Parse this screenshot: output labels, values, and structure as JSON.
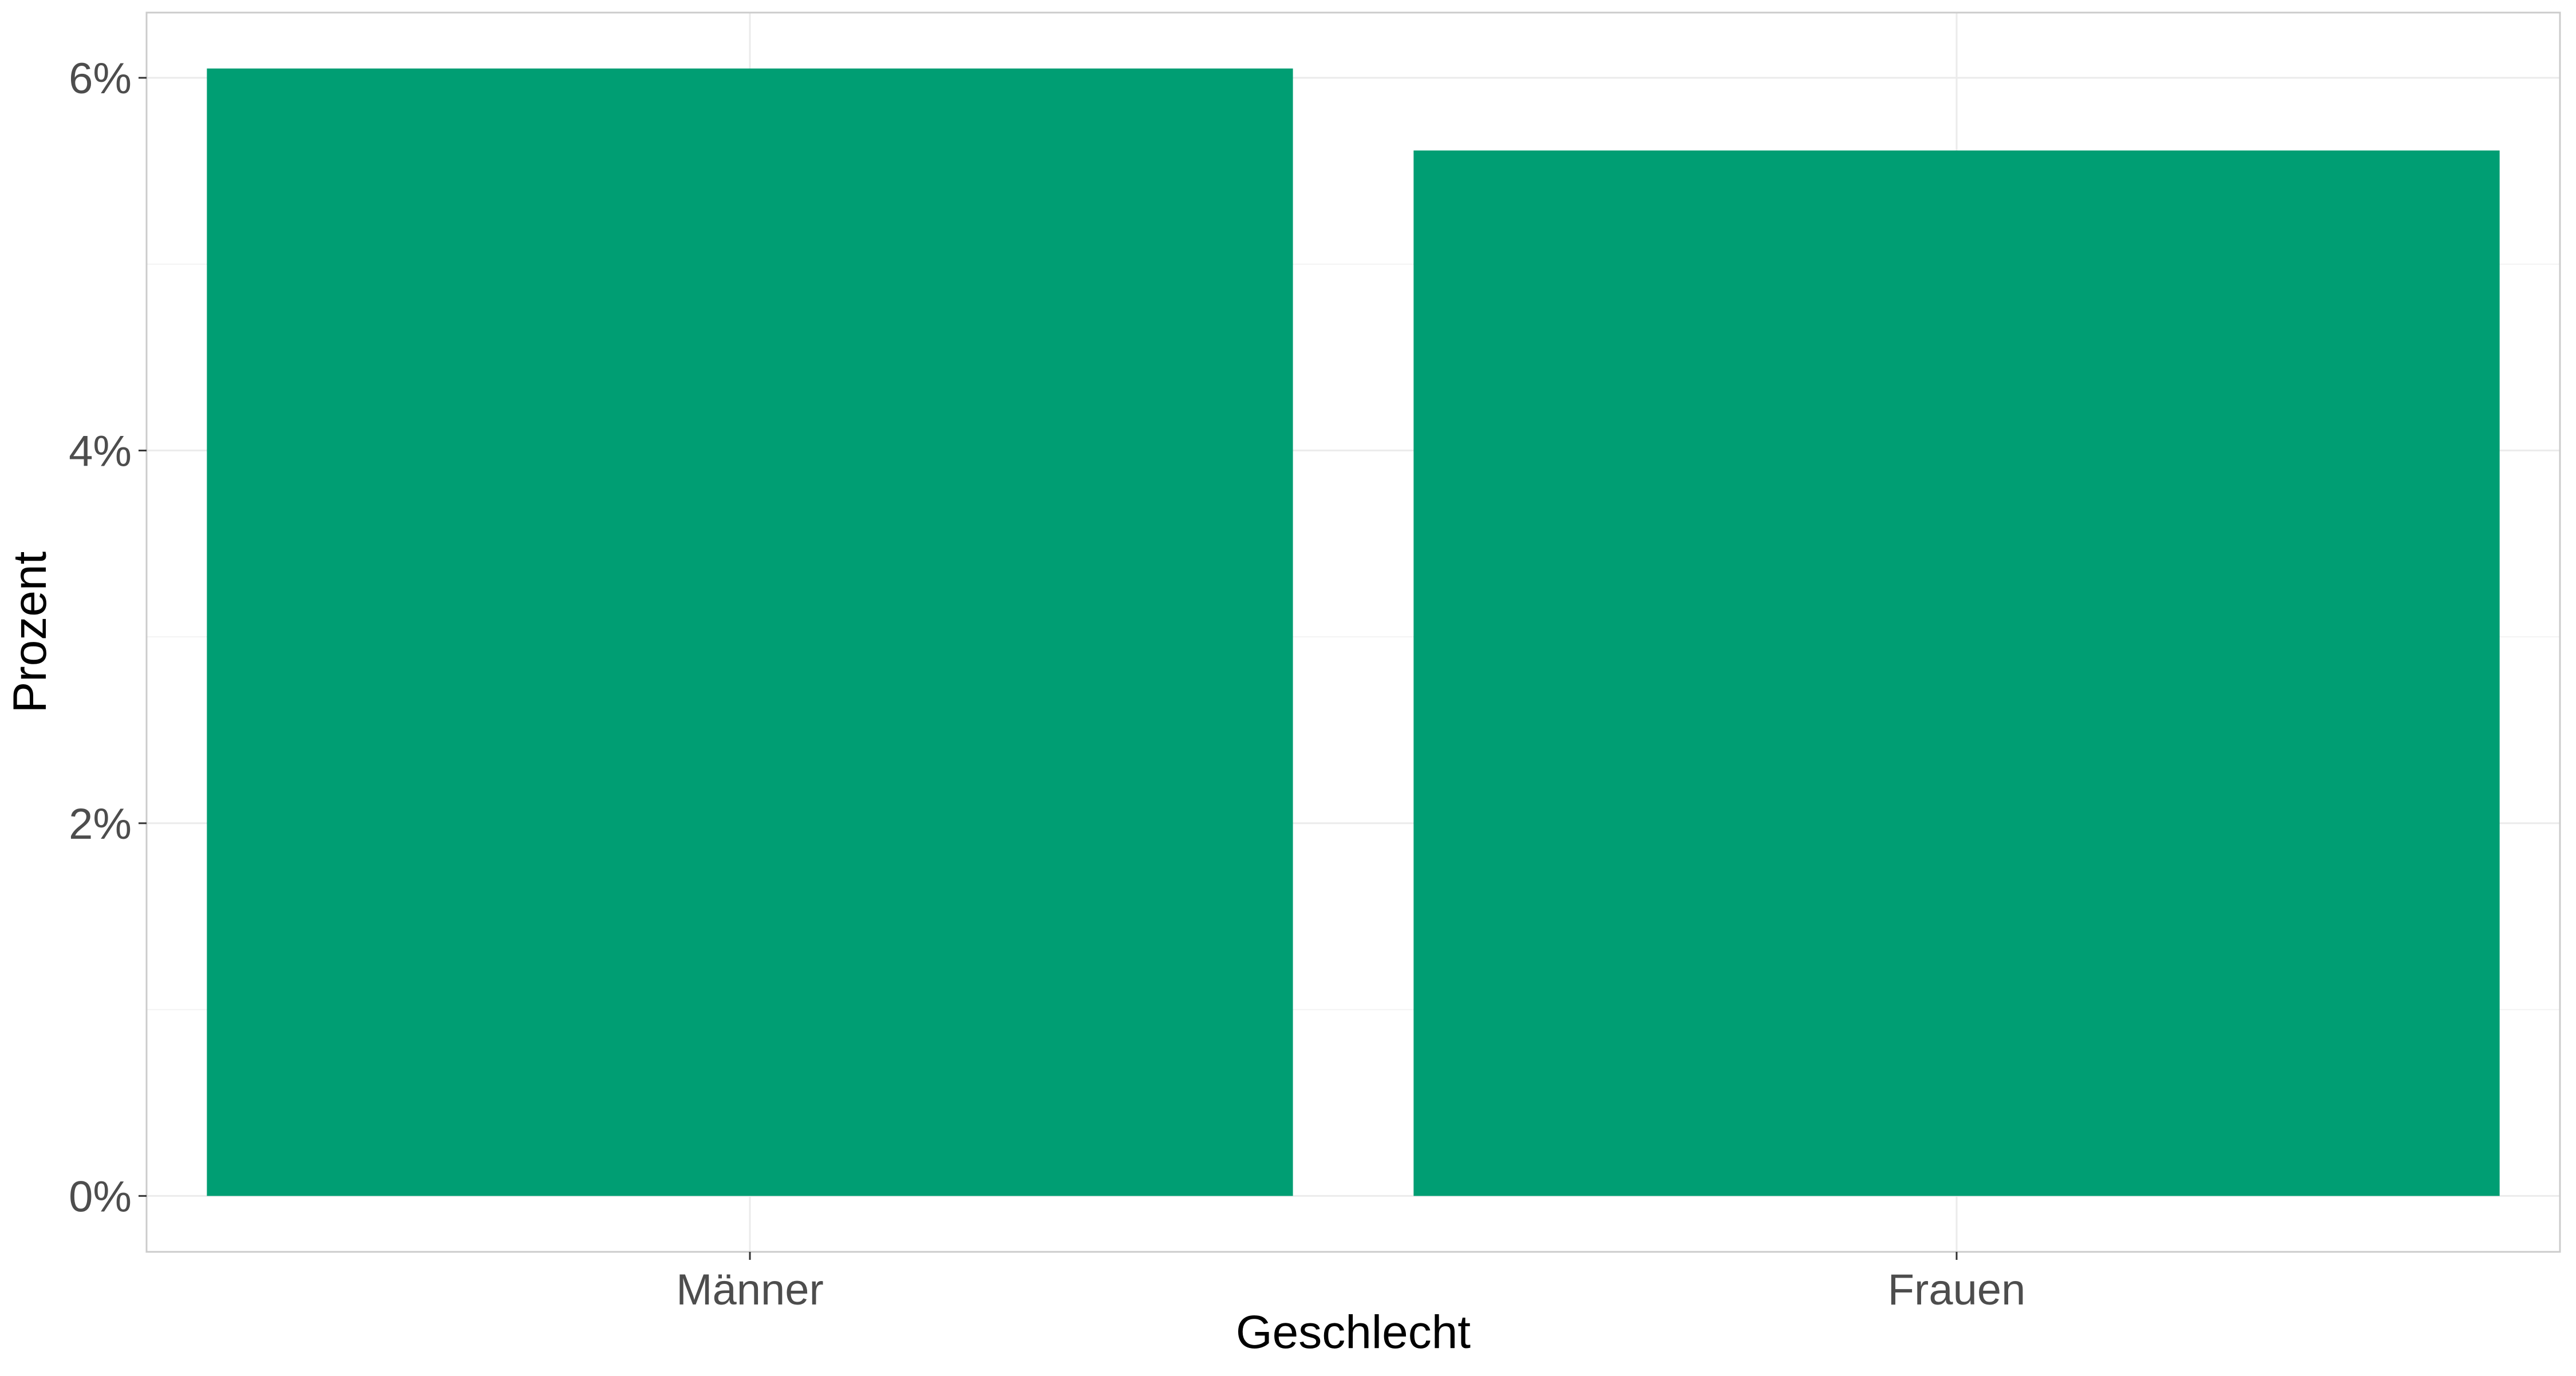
{
  "chart_data": {
    "type": "bar",
    "categories": [
      "Männer",
      "Frauen"
    ],
    "values": [
      6.05,
      5.61
    ],
    "unit": "%",
    "title": "",
    "xlabel": "Geschlecht",
    "ylabel": "Prozent",
    "ylim": [
      -0.3,
      6.35
    ],
    "y_ticks": [
      0,
      2,
      4,
      6
    ],
    "y_tick_labels": [
      "0%",
      "2%",
      "4%",
      "6%"
    ],
    "grid": true,
    "legend": "none",
    "colors": {
      "bar": "#009E73",
      "grid": "#ebebeb",
      "panel_border": "#cccccc",
      "tick_text": "#4d4d4d",
      "axis_title": "#000000"
    }
  }
}
